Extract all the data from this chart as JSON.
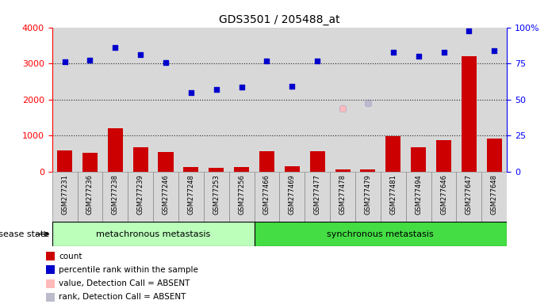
{
  "title": "GDS3501 / 205488_at",
  "samples": [
    "GSM277231",
    "GSM277236",
    "GSM277238",
    "GSM277239",
    "GSM277246",
    "GSM277248",
    "GSM277253",
    "GSM277256",
    "GSM277466",
    "GSM277469",
    "GSM277477",
    "GSM277478",
    "GSM277479",
    "GSM277481",
    "GSM277494",
    "GSM277646",
    "GSM277647",
    "GSM277648"
  ],
  "counts": [
    600,
    520,
    1200,
    680,
    540,
    130,
    110,
    130,
    570,
    150,
    570,
    60,
    55,
    980,
    680,
    870,
    3200,
    930
  ],
  "percentile_ranks": [
    3050,
    3100,
    3450,
    3250,
    3020,
    2200,
    2270,
    2340,
    3060,
    2360,
    3060,
    1750,
    1900,
    3300,
    3200,
    3300,
    3900,
    3350
  ],
  "absent_value_idx": 11,
  "absent_rank_idx": 12,
  "absent_value": 1750,
  "absent_rank": 1900,
  "group1_count": 8,
  "group2_count": 10,
  "group1_label": "metachronous metastasis",
  "group2_label": "synchronous metastasis",
  "disease_state_label": "disease state",
  "ylim_left": [
    0,
    4000
  ],
  "ylim_right": [
    0,
    100
  ],
  "yticks_left": [
    0,
    1000,
    2000,
    3000,
    4000
  ],
  "yticks_right": [
    0,
    25,
    50,
    75,
    100
  ],
  "bar_color": "#cc0000",
  "scatter_color": "#0000cc",
  "absent_value_color": "#ffbbbb",
  "absent_rank_color": "#bbbbcc",
  "col_bg_color": "#d8d8d8",
  "group1_bg": "#bbffbb",
  "group2_bg": "#44dd44",
  "dotted_line_color": "#222222",
  "legend_items": [
    {
      "label": "count",
      "color": "#cc0000"
    },
    {
      "label": "percentile rank within the sample",
      "color": "#0000cc"
    },
    {
      "label": "value, Detection Call = ABSENT",
      "color": "#ffbbbb"
    },
    {
      "label": "rank, Detection Call = ABSENT",
      "color": "#bbbbcc"
    }
  ]
}
